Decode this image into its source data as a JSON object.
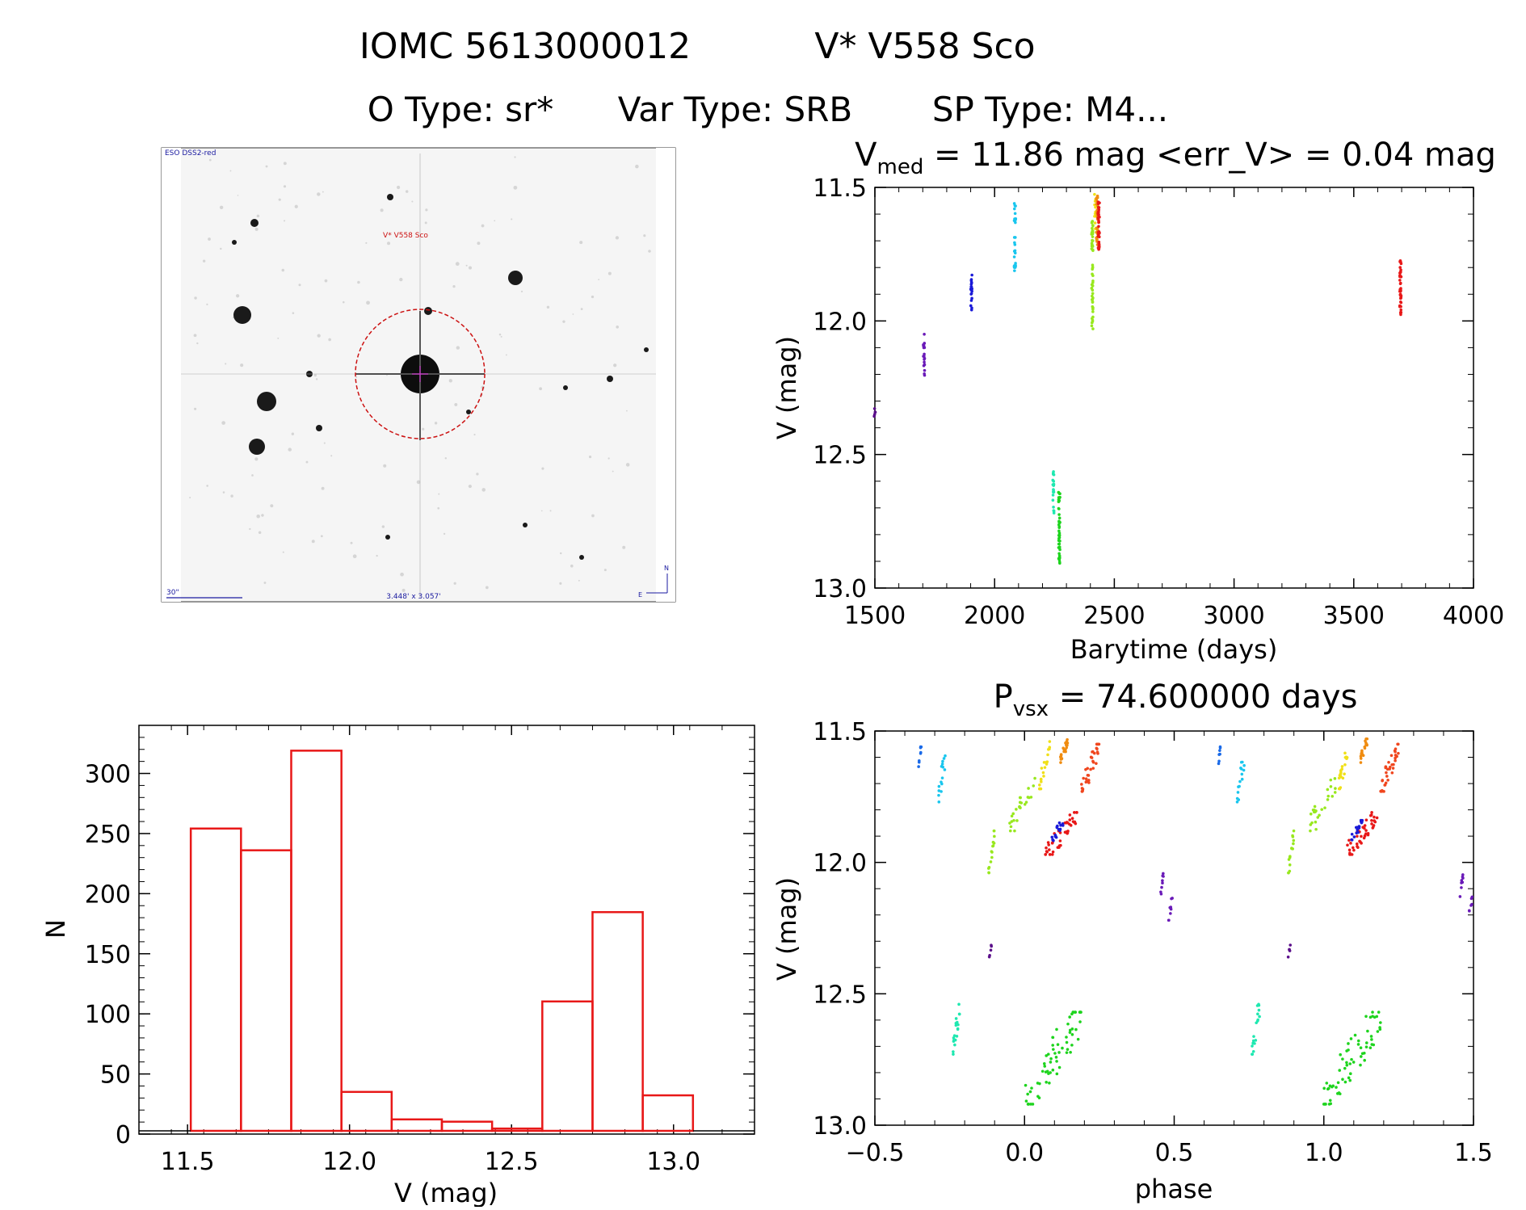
{
  "header": {
    "line1_left": "IOMC 5613000012",
    "line1_right": "V* V558 Sco",
    "otype_label": "O Type: sr*",
    "vartype_label": "Var Type: SRB",
    "sptype_label": "SP Type: M4..."
  },
  "finder": {
    "survey_label": "ESO DSS2-red",
    "target_label": "V* V558 Sco",
    "scale_label": "30\"",
    "fov_label": "3.448' x 3.057'",
    "north_label": "N",
    "east_label": "E",
    "colors": {
      "label": "#1a1aa0",
      "circle": "#cc1111"
    }
  },
  "chart_data": [
    {
      "id": "lightcurve",
      "type": "scatter",
      "title_prefix": "V",
      "title_sub": "med",
      "title_rest": " = 11.86 mag <err_V> = 0.04 mag",
      "xlabel": "Barytime (days)",
      "ylabel": "V (mag)",
      "xlim": [
        1500,
        4000
      ],
      "ylim": [
        13.0,
        11.5
      ],
      "xticks": [
        1500,
        2000,
        2500,
        3000,
        3500,
        4000
      ],
      "yticks": [
        11.5,
        12.0,
        12.5,
        13.0
      ],
      "groups": [
        {
          "x": 1500,
          "ymin": 12.32,
          "ymax": 12.36,
          "n": 5,
          "color": "#5a0e8a"
        },
        {
          "x": 1705,
          "ymin": 12.04,
          "ymax": 12.22,
          "n": 18,
          "color": "#6a1ab8"
        },
        {
          "x": 1903,
          "ymin": 11.82,
          "ymax": 11.97,
          "n": 20,
          "color": "#1a1ad8"
        },
        {
          "x": 2085,
          "ymin": 11.56,
          "ymax": 11.82,
          "n": 30,
          "color": "#19c6ee"
        },
        {
          "x": 2245,
          "ymin": 12.54,
          "ymax": 12.72,
          "n": 20,
          "color": "#1ee8b0"
        },
        {
          "x": 2270,
          "ymin": 12.64,
          "ymax": 12.91,
          "n": 45,
          "color": "#1ed41e"
        },
        {
          "x": 2408,
          "ymin": 11.62,
          "ymax": 12.04,
          "n": 55,
          "color": "#98e81e"
        },
        {
          "x": 2420,
          "ymin": 11.52,
          "ymax": 11.66,
          "n": 12,
          "color": "#f0e018"
        },
        {
          "x": 2428,
          "ymin": 11.53,
          "ymax": 11.72,
          "n": 30,
          "color": "#f08c10"
        },
        {
          "x": 2435,
          "ymin": 11.55,
          "ymax": 11.76,
          "n": 40,
          "color": "#e81818"
        },
        {
          "x": 3695,
          "ymin": 11.77,
          "ymax": 11.98,
          "n": 45,
          "color": "#e81818"
        }
      ]
    },
    {
      "id": "histogram",
      "type": "bar",
      "xlabel": "V (mag)",
      "ylabel": "N",
      "xlim": [
        11.35,
        13.25
      ],
      "ylim": [
        0,
        340
      ],
      "xticks": [
        11.5,
        12.0,
        12.5,
        13.0
      ],
      "yticks": [
        0,
        50,
        100,
        150,
        200,
        250,
        300
      ],
      "bin_edges": [
        11.51,
        11.665,
        11.82,
        11.975,
        12.13,
        12.285,
        12.44,
        12.595,
        12.75,
        12.905,
        13.06
      ],
      "values": [
        264,
        245,
        332,
        34,
        10,
        8,
        2,
        113,
        191,
        31
      ],
      "color": "#e81818"
    },
    {
      "id": "phased",
      "type": "scatter",
      "title_prefix": "P",
      "title_sub": "vsx",
      "title_rest": " = 74.600000 days",
      "xlabel": "phase",
      "ylabel": "V (mag)",
      "xlim": [
        -0.5,
        1.5
      ],
      "ylim": [
        13.0,
        11.5
      ],
      "xticks": [
        -0.5,
        0.0,
        0.5,
        1.0,
        1.5
      ],
      "yticks": [
        11.5,
        12.0,
        12.5,
        13.0
      ],
      "groups": [
        {
          "xmin": -0.355,
          "xmax": -0.345,
          "ymin": 11.56,
          "ymax": 11.64,
          "n": 8,
          "color": "#1a6ae8"
        },
        {
          "xmin": -0.29,
          "xmax": -0.265,
          "ymin": 11.59,
          "ymax": 11.77,
          "n": 15,
          "color": "#19c6ee"
        },
        {
          "xmin": -0.24,
          "xmax": -0.215,
          "ymin": 12.54,
          "ymax": 12.73,
          "n": 20,
          "color": "#1ee8b0"
        },
        {
          "xmin": -0.12,
          "xmax": -0.11,
          "ymin": 12.31,
          "ymax": 12.36,
          "n": 5,
          "color": "#5a0e8a"
        },
        {
          "xmin": -0.12,
          "xmax": -0.1,
          "ymin": 11.88,
          "ymax": 12.04,
          "n": 15,
          "color": "#98e81e"
        },
        {
          "xmin": -0.05,
          "xmax": 0.04,
          "ymin": 11.68,
          "ymax": 11.88,
          "n": 25,
          "color": "#98e81e"
        },
        {
          "xmin": 0.05,
          "xmax": 0.085,
          "ymin": 11.54,
          "ymax": 11.72,
          "n": 20,
          "color": "#f0e018"
        },
        {
          "xmin": 0.12,
          "xmax": 0.145,
          "ymin": 11.53,
          "ymax": 11.62,
          "n": 20,
          "color": "#f08c10"
        },
        {
          "xmin": 0.19,
          "xmax": 0.25,
          "ymin": 11.55,
          "ymax": 11.73,
          "n": 35,
          "color": "#f0461e"
        },
        {
          "xmin": 0.07,
          "xmax": 0.18,
          "ymin": 11.81,
          "ymax": 11.97,
          "n": 45,
          "color": "#e81818"
        },
        {
          "xmin": 0.09,
          "xmax": 0.13,
          "ymin": 11.84,
          "ymax": 11.92,
          "n": 18,
          "color": "#1a1ad8"
        },
        {
          "xmin": 0.0,
          "xmax": 0.19,
          "ymin": 12.57,
          "ymax": 12.92,
          "n": 65,
          "color": "#1ed41e"
        },
        {
          "xmin": 0.455,
          "xmax": 0.465,
          "ymin": 12.04,
          "ymax": 12.13,
          "n": 8,
          "color": "#6a1ab8"
        },
        {
          "xmin": 0.48,
          "xmax": 0.495,
          "ymin": 12.13,
          "ymax": 12.22,
          "n": 8,
          "color": "#6a1ab8"
        },
        {
          "xmin": 0.645,
          "xmax": 0.655,
          "ymin": 11.56,
          "ymax": 11.64,
          "n": 8,
          "color": "#1a6ae8"
        },
        {
          "xmin": 0.71,
          "xmax": 0.735,
          "ymin": 11.59,
          "ymax": 11.77,
          "n": 15,
          "color": "#19c6ee"
        },
        {
          "xmin": 0.76,
          "xmax": 0.785,
          "ymin": 12.54,
          "ymax": 12.73,
          "n": 20,
          "color": "#1ee8b0"
        },
        {
          "xmin": 0.88,
          "xmax": 0.89,
          "ymin": 12.31,
          "ymax": 12.36,
          "n": 5,
          "color": "#5a0e8a"
        },
        {
          "xmin": 0.88,
          "xmax": 0.9,
          "ymin": 11.88,
          "ymax": 12.04,
          "n": 15,
          "color": "#98e81e"
        },
        {
          "xmin": 0.95,
          "xmax": 1.04,
          "ymin": 11.68,
          "ymax": 11.88,
          "n": 25,
          "color": "#98e81e"
        },
        {
          "xmin": 1.05,
          "xmax": 1.085,
          "ymin": 11.54,
          "ymax": 11.72,
          "n": 20,
          "color": "#f0e018"
        },
        {
          "xmin": 1.12,
          "xmax": 1.145,
          "ymin": 11.53,
          "ymax": 11.62,
          "n": 20,
          "color": "#f08c10"
        },
        {
          "xmin": 1.19,
          "xmax": 1.25,
          "ymin": 11.55,
          "ymax": 11.73,
          "n": 35,
          "color": "#f0461e"
        },
        {
          "xmin": 1.07,
          "xmax": 1.18,
          "ymin": 11.81,
          "ymax": 11.97,
          "n": 45,
          "color": "#e81818"
        },
        {
          "xmin": 1.09,
          "xmax": 1.13,
          "ymin": 11.84,
          "ymax": 11.92,
          "n": 18,
          "color": "#1a1ad8"
        },
        {
          "xmin": 1.0,
          "xmax": 1.19,
          "ymin": 12.57,
          "ymax": 12.92,
          "n": 65,
          "color": "#1ed41e"
        },
        {
          "xmin": 1.455,
          "xmax": 1.465,
          "ymin": 12.04,
          "ymax": 12.13,
          "n": 8,
          "color": "#6a1ab8"
        },
        {
          "xmin": 1.48,
          "xmax": 1.5,
          "ymin": 12.13,
          "ymax": 12.2,
          "n": 6,
          "color": "#6a1ab8"
        }
      ]
    }
  ]
}
